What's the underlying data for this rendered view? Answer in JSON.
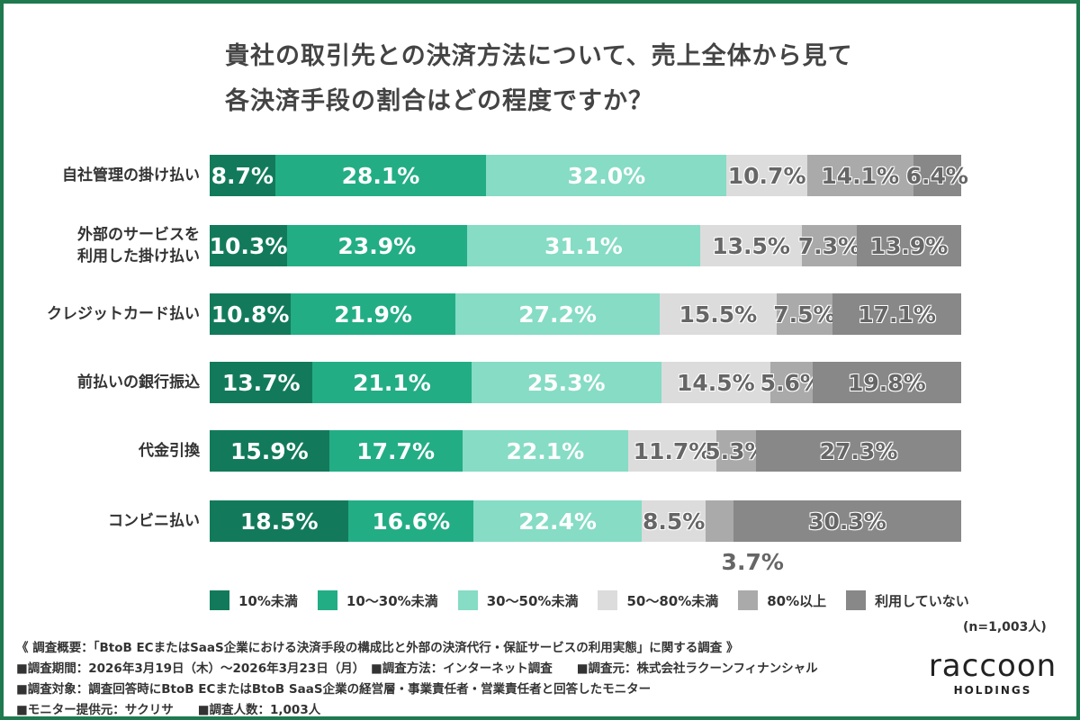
{
  "title_lines": [
    "貴社の取引先との決済方法について、売上全体から見て",
    "各決済手段の割合はどの程度ですか？"
  ],
  "chart_data": {
    "type": "bar",
    "orientation": "horizontal",
    "stacked": true,
    "title": "貴社の取引先との決済方法について、売上全体から見て各決済手段の割合はどの程度ですか？",
    "categories": [
      "自社管理の掛け払い",
      "外部のサービスを\n利用した掛け払い",
      "クレジットカード払い",
      "前払いの銀行振込",
      "代金引換",
      "コンビニ払い"
    ],
    "series": [
      {
        "name": "10%未満",
        "color": "#127a5a",
        "values": [
          8.7,
          10.3,
          10.8,
          13.7,
          15.9,
          18.5
        ]
      },
      {
        "name": "10～30%未満",
        "color": "#22ad85",
        "values": [
          28.1,
          23.9,
          21.9,
          21.1,
          17.7,
          16.6
        ]
      },
      {
        "name": "30～50%未満",
        "color": "#86dcc4",
        "values": [
          32.0,
          31.1,
          27.2,
          25.3,
          22.1,
          22.4
        ]
      },
      {
        "name": "50～80%未満",
        "color": "#dcdcdc",
        "values": [
          10.7,
          13.5,
          15.5,
          14.5,
          11.7,
          8.5
        ]
      },
      {
        "name": "80%以上",
        "color": "#aaaaaa",
        "values": [
          14.1,
          7.3,
          7.5,
          5.6,
          5.3,
          3.7
        ]
      },
      {
        "name": "利用していない",
        "color": "#888888",
        "values": [
          6.4,
          13.9,
          17.1,
          19.8,
          27.3,
          30.3
        ]
      }
    ],
    "unit": "%",
    "legend_position": "bottom",
    "grid": false
  },
  "sample_note": "(n=1,003人)",
  "footer": [
    "《 調査概要：「BtoB ECまたはSaaS企業における決済手段の構成比と外部の決済代行・保証サービスの利用実態」に関する調査 》",
    "■調査期間：2026年3月19日（木）～2026年3月23日（月）　■調査方法：インターネット調査　　■調査元：株式会社ラクーンフィナンシャル",
    "■調査対象：調査回答時にBtoB ECまたはBtoB SaaS企業の経営層・事業責任者・営業責任者と回答したモニター",
    "■モニター提供元：サクリサ　　■調査人数：1,003人"
  ],
  "logo": {
    "word": "raccoon",
    "sub": "HOLDINGS"
  },
  "colors": {
    "frame": "#1f7a4f"
  }
}
